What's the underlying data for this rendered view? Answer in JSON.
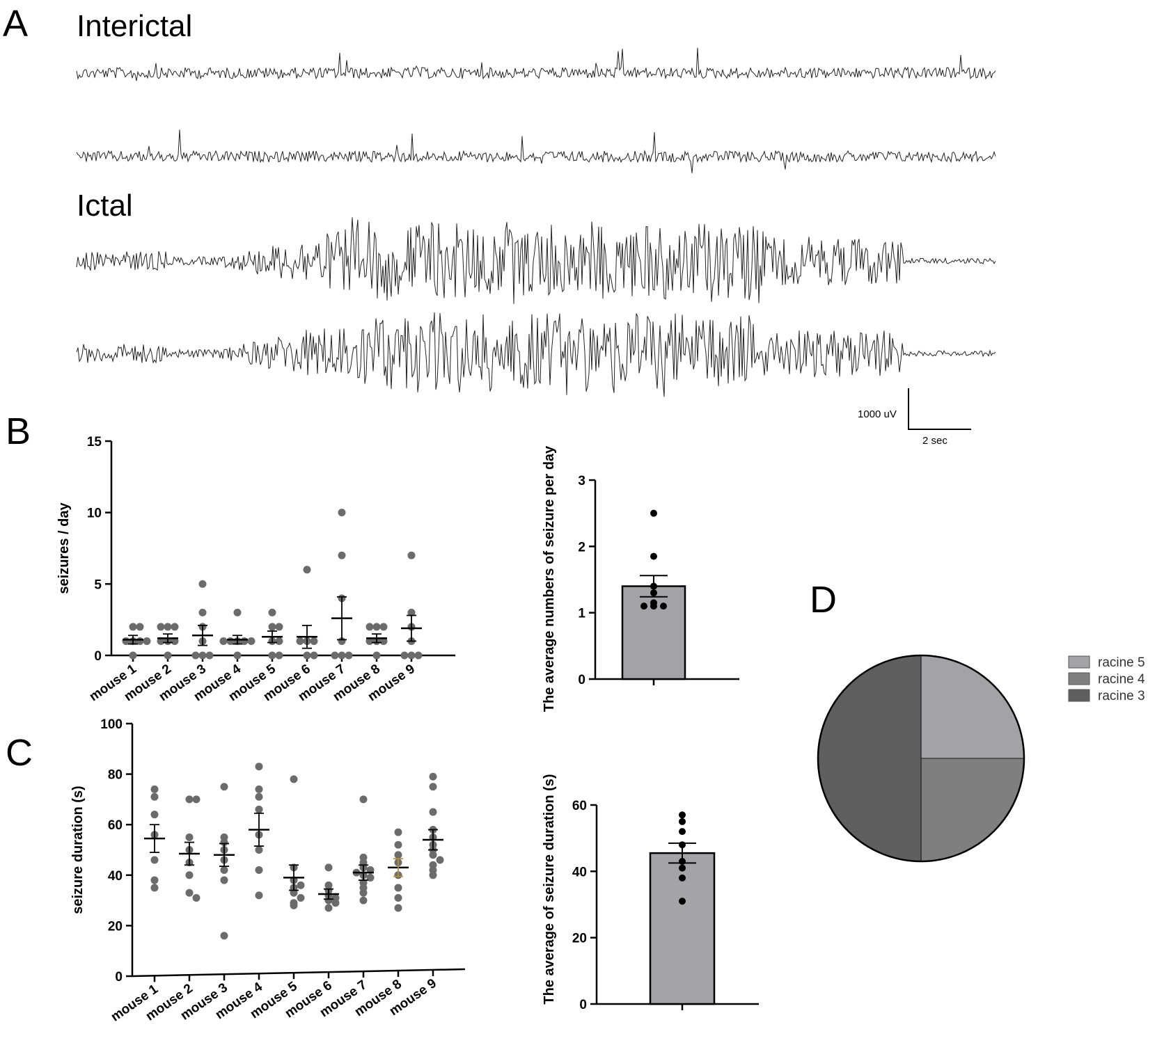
{
  "panels": {
    "a": "A",
    "b": "B",
    "c": "C",
    "d": "D"
  },
  "traces": {
    "interictal_label": "Interictal",
    "ictal_label": "Ictal",
    "scale_voltage": "1000 uV",
    "scale_time": "2 sec"
  },
  "colors": {
    "dot": "#6b6b6b",
    "bar": "#a3a3a8",
    "mean_dot": "#000000",
    "highlight_err": "#b5923a",
    "racine5": "#a3a3a7",
    "racine4": "#7f7f7f",
    "racine3": "#5f5f5f"
  },
  "chart_data": [
    {
      "id": "b-left",
      "type": "scatter",
      "ylabel": "seizures / day",
      "ylim": [
        0,
        15
      ],
      "yticks": [
        0,
        5,
        10,
        15
      ],
      "categories": [
        "mouse 1",
        "mouse 2",
        "mouse 3",
        "mouse 4",
        "mouse 5",
        "mouse 6",
        "mouse 7",
        "mouse 8",
        "mouse 9"
      ],
      "points": [
        [
          2,
          2,
          1,
          1,
          1,
          0,
          1
        ],
        [
          2,
          2,
          2,
          1,
          1,
          0,
          1
        ],
        [
          5,
          3,
          2,
          1,
          0,
          0,
          0
        ],
        [
          3,
          1,
          1,
          1,
          1,
          1,
          0
        ],
        [
          3,
          2,
          2,
          1,
          1,
          0,
          0
        ],
        [
          6,
          1,
          1,
          1,
          0,
          0
        ],
        [
          10,
          7,
          4,
          1,
          0,
          0,
          0
        ],
        [
          2,
          2,
          2,
          1,
          1,
          0,
          1
        ],
        [
          7,
          3,
          2,
          1,
          0,
          0,
          0
        ]
      ],
      "mean": [
        1.1,
        1.2,
        1.4,
        1.1,
        1.3,
        1.3,
        2.6,
        1.2,
        1.9
      ],
      "sem": [
        0.3,
        0.3,
        0.7,
        0.3,
        0.4,
        0.8,
        1.5,
        0.3,
        0.9
      ]
    },
    {
      "id": "b-right",
      "type": "bar",
      "ylabel": "The average numbers of seizure per day",
      "ylim": [
        0,
        3
      ],
      "yticks": [
        0,
        1,
        2,
        3
      ],
      "value": 1.4,
      "sem": 0.16,
      "points": [
        2.5,
        1.85,
        1.4,
        1.3,
        1.15,
        1.1,
        1.1,
        1.1
      ]
    },
    {
      "id": "c-left",
      "type": "scatter",
      "ylabel": "seizure duration (s)",
      "ylim": [
        0,
        100
      ],
      "yticks": [
        0,
        20,
        40,
        60,
        80,
        100
      ],
      "categories": [
        "mouse 1",
        "mouse 2",
        "mouse 3",
        "mouse 4",
        "mouse 5",
        "mouse 6",
        "mouse 7",
        "mouse 8",
        "mouse 9"
      ],
      "points": [
        [
          74,
          71,
          64,
          56,
          46,
          38,
          35
        ],
        [
          70,
          70,
          55,
          50,
          45,
          40,
          33,
          31
        ],
        [
          75,
          55,
          53,
          50,
          46,
          42,
          38,
          16
        ],
        [
          83,
          74,
          71,
          66,
          56,
          50,
          42,
          32
        ],
        [
          78,
          43,
          38,
          36,
          35,
          33,
          31,
          29,
          28
        ],
        [
          43,
          36,
          34,
          32,
          31,
          30,
          29,
          27
        ],
        [
          70,
          47,
          45,
          43,
          42,
          41,
          40,
          39,
          37,
          35,
          33,
          30
        ],
        [
          57,
          52,
          48,
          45,
          40,
          35,
          31,
          27
        ],
        [
          79,
          75,
          65,
          58,
          55,
          52,
          50,
          48,
          46,
          44,
          42,
          40
        ]
      ],
      "mean": [
        54.5,
        48.5,
        48,
        58,
        39,
        32.5,
        41,
        43,
        54
      ],
      "sem": [
        5.5,
        4.5,
        4.5,
        6.5,
        5,
        2,
        3,
        3.5,
        4
      ]
    },
    {
      "id": "c-right",
      "type": "bar",
      "ylabel": "The average of seizure duration (s)",
      "ylim": [
        0,
        60
      ],
      "yticks": [
        0,
        20,
        40,
        60
      ],
      "value": 45.5,
      "sem": 3,
      "points": [
        57,
        55,
        52,
        48,
        43,
        41,
        38,
        31
      ]
    },
    {
      "id": "d",
      "type": "pie",
      "labels": [
        "racine 5",
        "racine 4",
        "racine 3"
      ],
      "values": [
        0.25,
        0.25,
        0.5
      ]
    }
  ]
}
